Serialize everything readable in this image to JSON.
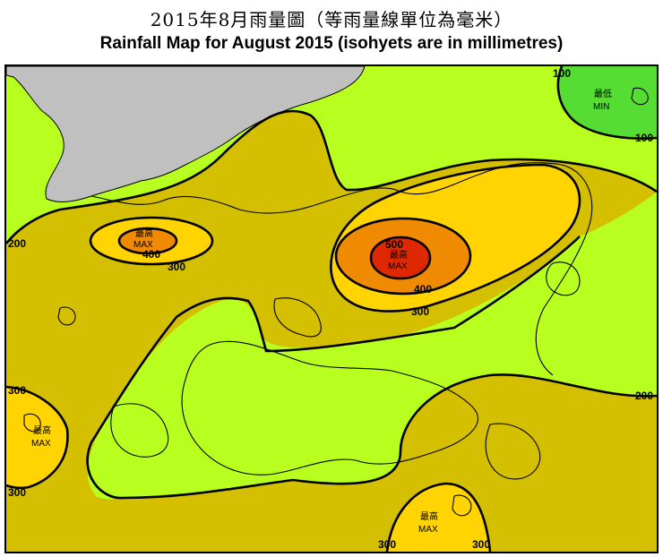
{
  "title_zh": "2015年8月雨量圖（等雨量線單位為毫米）",
  "title_en": "Rainfall Map for August 2015 (isohyets are in millimetres)",
  "colors": {
    "band_200_300": "#d4c000",
    "band_100_200": "#b8ff20",
    "band_below_100": "#55dd33",
    "band_300_400": "#ffd400",
    "band_400_500": "#f08a00",
    "band_above_500": "#e02800",
    "mainland": "#c0c0c0",
    "coast": "#000000"
  },
  "isohyet_labels": {
    "l100a": "100",
    "l100b": "100",
    "l200a": "200",
    "l200b": "200",
    "l300a": "300",
    "l300b": "300",
    "l300c": "300",
    "l300d": "300",
    "l300e": "300",
    "l300f": "300",
    "l400a": "400",
    "l400b": "400",
    "l500": "500"
  },
  "markers": {
    "max_zh": "最高",
    "max_en": "MAX",
    "min_zh": "最低",
    "min_en": "MIN"
  }
}
